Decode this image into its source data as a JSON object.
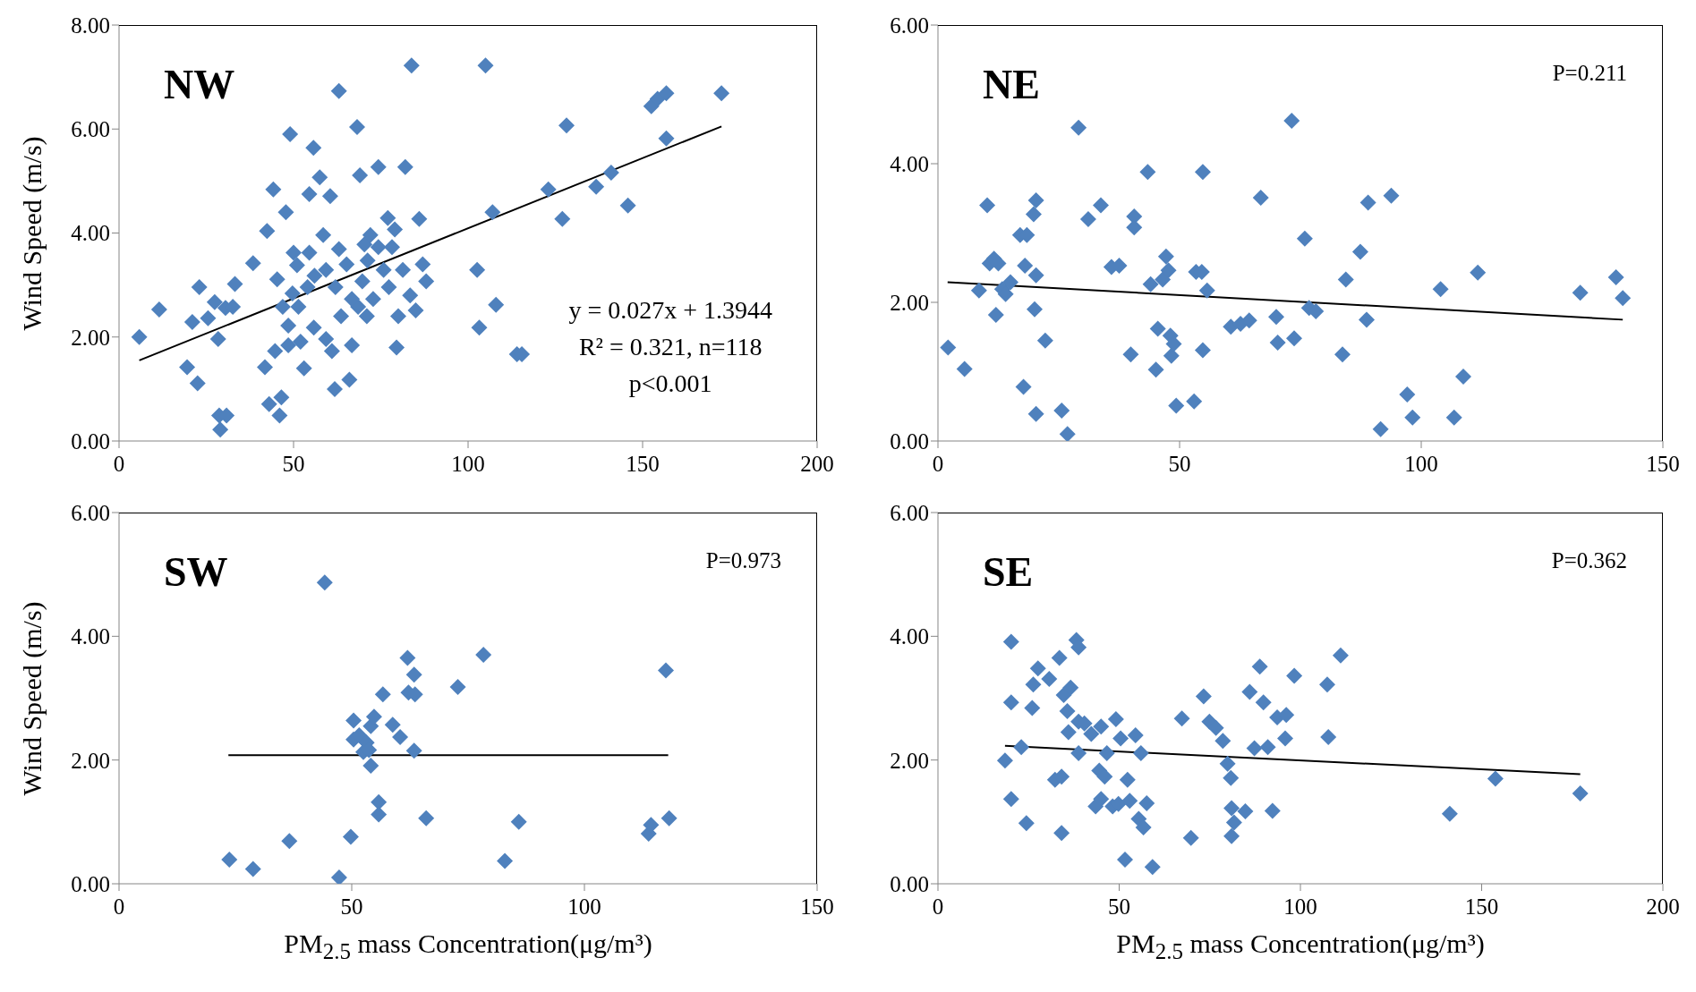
{
  "chart_data": [
    {
      "type": "scatter",
      "ylabel": "Wind Speed (m/s)",
      "annotations": [
        "NW",
        "y = 0.027x + 1.3944",
        "R² = 0.321, n=118",
        "p<0.001"
      ],
      "marker": "diamond",
      "xlim": [
        0,
        200
      ],
      "xticks": [
        0,
        50,
        100,
        150,
        200
      ],
      "ylim": [
        0,
        8
      ],
      "yticks": [
        {
          "value": 0,
          "label": "0.00"
        },
        {
          "value": 2,
          "label": "2.00"
        },
        {
          "value": 4,
          "label": "4.00"
        },
        {
          "value": 6,
          "label": "6.00"
        },
        {
          "value": 8,
          "label": "8.00"
        }
      ],
      "series": [
        {
          "color": "#4f81bd",
          "x": [
            5.8,
            11.5,
            19.5,
            22.5,
            21,
            23,
            25.5,
            27.4,
            28.4,
            28.7,
            30.8,
            29,
            30.5,
            33.2,
            32.6,
            38.4,
            42.4,
            44.2,
            41.8,
            43,
            46,
            46.5,
            44.7,
            45.3,
            46.9,
            47.8,
            49,
            50,
            48.5,
            49.7,
            51,
            52,
            53,
            54.5,
            55.7,
            54.5,
            54,
            55.8,
            57.5,
            58.5,
            59.3,
            59.3,
            60.5,
            61,
            61.8,
            63,
            63,
            63.6,
            65.2,
            66,
            66.7,
            68.2,
            69,
            68.5,
            69.7,
            70.3,
            71.2,
            72,
            72.8,
            74.3,
            74.3,
            75.8,
            77,
            78.2,
            79,
            79.5,
            80,
            81.3,
            82,
            83.8,
            83.4,
            85,
            86,
            87,
            88,
            102.6,
            103.2,
            105,
            107,
            108,
            114,
            115.4,
            123,
            127,
            128.2,
            136.7,
            141,
            145.8,
            152.5,
            154.3,
            156.8,
            156.8,
            172.6,
            51.4,
            56,
            66.7,
            62,
            71,
            77.3,
            48.5
          ],
          "values": [
            2.0,
            2.53,
            1.42,
            1.11,
            2.29,
            2.96,
            2.36,
            2.67,
            1.96,
            0.49,
            0.49,
            0.22,
            2.56,
            3.02,
            2.58,
            3.42,
            4.04,
            4.84,
            1.42,
            0.71,
            0.49,
            0.84,
            1.73,
            3.11,
            2.58,
            4.4,
            5.9,
            3.62,
            2.22,
            2.84,
            3.38,
            1.91,
            1.4,
            4.75,
            5.64,
            3.62,
            2.96,
            2.18,
            5.07,
            3.96,
            3.29,
            1.96,
            4.71,
            1.73,
            1.0,
            6.73,
            3.69,
            2.4,
            3.4,
            1.18,
            1.84,
            6.04,
            5.11,
            2.58,
            3.07,
            3.78,
            3.47,
            3.96,
            2.73,
            5.27,
            3.73,
            3.29,
            4.29,
            3.73,
            4.07,
            1.8,
            2.4,
            3.29,
            5.27,
            7.22,
            2.8,
            2.51,
            4.27,
            3.4,
            3.07,
            3.29,
            2.18,
            7.22,
            4.4,
            2.62,
            1.67,
            1.67,
            4.84,
            4.27,
            6.07,
            4.89,
            5.16,
            4.53,
            6.44,
            6.58,
            6.69,
            5.82,
            6.69,
            2.58,
            3.18,
            2.73,
            2.96,
            2.4,
            2.96,
            1.84
          ]
        },
        {
          "type": "line",
          "color": "#000000",
          "marker": "none",
          "x": [
            5.8,
            172.6
          ],
          "values": [
            1.55,
            6.05
          ]
        }
      ]
    },
    {
      "type": "scatter",
      "annotations": [
        "NE",
        "P=0.211"
      ],
      "marker": "diamond",
      "xlim": [
        0,
        150
      ],
      "xticks": [
        0,
        50,
        100,
        150
      ],
      "ylim": [
        0,
        6
      ],
      "yticks": [
        {
          "value": 0,
          "label": "0.00"
        },
        {
          "value": 2,
          "label": "2.00"
        },
        {
          "value": 4,
          "label": "4.00"
        },
        {
          "value": 6,
          "label": "6.00"
        }
      ],
      "series": [
        {
          "color": "#4f81bd",
          "x": [
            2.1,
            5.5,
            8.5,
            10.2,
            10.7,
            11.6,
            12.5,
            12.0,
            13.3,
            14,
            15,
            17,
            17.7,
            18,
            18.4,
            19.8,
            20.3,
            20.3,
            20,
            20.3,
            22.2,
            25.6,
            26.8,
            29.1,
            31.1,
            33.7,
            35.9,
            37.5,
            39.9,
            40.6,
            40.6,
            43.4,
            44,
            45.1,
            45.5,
            46.5,
            47.2,
            47.7,
            48.1,
            48.3,
            48.8,
            49.3,
            53,
            53.4,
            54.6,
            54.8,
            54.8,
            55.7,
            60.6,
            62.6,
            64.4,
            66.8,
            70,
            70.3,
            73.2,
            73.7,
            75.9,
            76.8,
            78.2,
            83.7,
            84.4,
            87.4,
            88.7,
            89,
            91.6,
            93.8,
            97.1,
            98.2,
            104,
            106.8,
            108.7,
            111.7,
            132.9,
            140.3,
            141.7
          ],
          "values": [
            1.35,
            1.04,
            2.17,
            3.4,
            2.56,
            2.63,
            2.56,
            1.82,
            2.19,
            2.12,
            2.29,
            2.97,
            0.78,
            2.53,
            2.97,
            3.27,
            3.47,
            2.39,
            1.9,
            0.39,
            1.45,
            0.44,
            0.1,
            4.52,
            3.2,
            3.4,
            2.51,
            2.53,
            1.25,
            3.24,
            3.08,
            3.88,
            2.26,
            1.03,
            1.62,
            2.33,
            2.66,
            2.46,
            1.52,
            1.23,
            1.4,
            0.51,
            0.57,
            2.44,
            2.44,
            3.88,
            1.31,
            2.17,
            1.65,
            1.69,
            1.74,
            3.51,
            1.79,
            1.42,
            4.62,
            1.48,
            2.92,
            1.92,
            1.87,
            1.25,
            2.33,
            2.73,
            1.75,
            3.44,
            0.17,
            3.54,
            0.67,
            0.34,
            2.19,
            0.34,
            0.93,
            2.43,
            2.14,
            2.36,
            2.06
          ]
        },
        {
          "type": "line",
          "color": "#000000",
          "marker": "none",
          "x": [
            2,
            141.7
          ],
          "values": [
            2.29,
            1.75
          ]
        }
      ]
    },
    {
      "type": "scatter",
      "xlabel": "PM$_{2.5}$ mass Concentration(μg/m³)",
      "ylabel": "Wind Speed (m/s)",
      "annotations": [
        "SW",
        "P=0.973"
      ],
      "marker": "diamond",
      "xlim": [
        0,
        150
      ],
      "xticks": [
        0,
        50,
        100,
        150
      ],
      "ylim": [
        0,
        6
      ],
      "yticks": [
        {
          "value": 0,
          "label": "0.00"
        },
        {
          "value": 2,
          "label": "2.00"
        },
        {
          "value": 4,
          "label": "4.00"
        },
        {
          "value": 6,
          "label": "6.00"
        }
      ],
      "series": [
        {
          "color": "#4f81bd",
          "x": [
            23.7,
            28.8,
            36.6,
            44.2,
            47.3,
            49.8,
            50.4,
            50.4,
            51.6,
            52.5,
            53.2,
            53.7,
            54.1,
            54.1,
            54.8,
            55.8,
            55.8,
            56.7,
            58.8,
            60.4,
            62,
            62.2,
            63.4,
            63.6,
            63.4,
            66,
            72.8,
            78.3,
            82.9,
            85.9,
            113.8,
            114.3,
            117.5,
            118.2
          ],
          "values": [
            0.39,
            0.24,
            0.69,
            4.87,
            0.1,
            0.76,
            2.64,
            2.33,
            2.4,
            2.13,
            2.28,
            2.16,
            1.91,
            2.55,
            2.7,
            1.32,
            1.12,
            3.06,
            2.57,
            2.37,
            3.65,
            3.09,
            3.38,
            3.06,
            2.15,
            1.06,
            3.18,
            3.7,
            0.37,
            1.0,
            0.81,
            0.95,
            3.45,
            1.06
          ]
        },
        {
          "type": "line",
          "color": "#000000",
          "marker": "none",
          "x": [
            23.5,
            118
          ],
          "values": [
            2.08,
            2.08
          ]
        }
      ]
    },
    {
      "type": "scatter",
      "xlabel": "PM$_{2.5}$ mass Concentration(μg/m³)",
      "annotations": [
        "SE",
        "P=0.362"
      ],
      "marker": "diamond",
      "xlim": [
        0,
        200
      ],
      "xticks": [
        0,
        50,
        100,
        150,
        200
      ],
      "ylim": [
        0,
        6
      ],
      "yticks": [
        {
          "value": 0,
          "label": "0.00"
        },
        {
          "value": 2,
          "label": "2.00"
        },
        {
          "value": 4,
          "label": "4.00"
        },
        {
          "value": 6,
          "label": "6.00"
        }
      ],
      "series": [
        {
          "color": "#4f81bd",
          "x": [
            18.5,
            20.2,
            20.2,
            20.2,
            23,
            24.4,
            26,
            26.3,
            27.6,
            30.7,
            32.3,
            33.5,
            34.1,
            34.1,
            34.7,
            35.7,
            36,
            36.6,
            38.2,
            38.8,
            38.8,
            38.8,
            40.4,
            42.3,
            43.5,
            44.5,
            45,
            45,
            46,
            46.6,
            48.2,
            49.8,
            49.1,
            50.4,
            51.6,
            52.3,
            52.9,
            54.5,
            55.4,
            56,
            56.7,
            57.6,
            59.2,
            67.3,
            69.8,
            73.3,
            74.9,
            76.7,
            78.6,
            79.9,
            80.8,
            81,
            81,
            81.7,
            84.8,
            86,
            87.3,
            88.8,
            89.8,
            91,
            92.3,
            93.6,
            95.8,
            96.1,
            98.3,
            107.4,
            107.7,
            111.1,
            141.2,
            153.8,
            177.2
          ],
          "values": [
            1.99,
            3.91,
            2.93,
            1.37,
            2.21,
            0.98,
            2.84,
            3.22,
            3.48,
            3.31,
            1.68,
            3.65,
            1.73,
            0.82,
            3.05,
            2.79,
            2.45,
            3.17,
            3.94,
            3.82,
            2.62,
            2.11,
            2.59,
            2.42,
            1.25,
            1.83,
            1.37,
            2.54,
            1.73,
            2.11,
            1.25,
            1.29,
            2.66,
            2.35,
            0.39,
            1.68,
            1.34,
            2.4,
            1.05,
            2.11,
            0.91,
            1.3,
            0.27,
            2.67,
            0.74,
            3.03,
            2.62,
            2.52,
            2.31,
            1.94,
            1.71,
            1.22,
            0.77,
            0.99,
            1.17,
            3.1,
            2.19,
            3.51,
            2.93,
            2.21,
            1.18,
            2.69,
            2.35,
            2.73,
            3.36,
            3.22,
            2.37,
            3.69,
            1.13,
            1.7,
            1.46
          ]
        },
        {
          "type": "line",
          "color": "#000000",
          "marker": "none",
          "x": [
            18.5,
            177.2
          ],
          "values": [
            2.23,
            1.77
          ]
        }
      ]
    }
  ]
}
